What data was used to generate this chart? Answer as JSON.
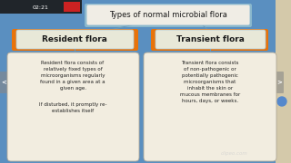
{
  "bg_color": "#5a8fc0",
  "left_strip_color": "#3a6a95",
  "right_strip_color": "#d4c9aa",
  "title": "Types of normal microbial flora",
  "title_box_color": "#f0ede5",
  "title_box_edge": "#8ab8d0",
  "title_shadow_color": "#8ab8cc",
  "header_left": "Resident flora",
  "header_right": "Transient flora",
  "header_bg": "#e8730a",
  "header_box_color": "#e8e8d8",
  "header_box_edge": "#a8c8d8",
  "body_left_1": "Resident flora consists of\nrelatively fixed types of\nmicroorganisms regularly\nfound in a given area at a\ngiven age.",
  "body_left_2": "If disturbed, it promptly re-\nestablishes itself",
  "body_right": "Transient flora consists\nof non-pathogenic or\npotentially pathogenic\nmicroorganisms that\ninhabit the skin or\nmucous membranes for\nhours, days, or weeks.",
  "body_box_color": "#f2ede0",
  "body_box_edge": "#b0a898",
  "watermark": "clipeo.com",
  "top_bar_color": "#1a1a2e",
  "top_bar_text": "02:21",
  "nav_arrow_color": "#888888",
  "dot_color": "#5588cc"
}
